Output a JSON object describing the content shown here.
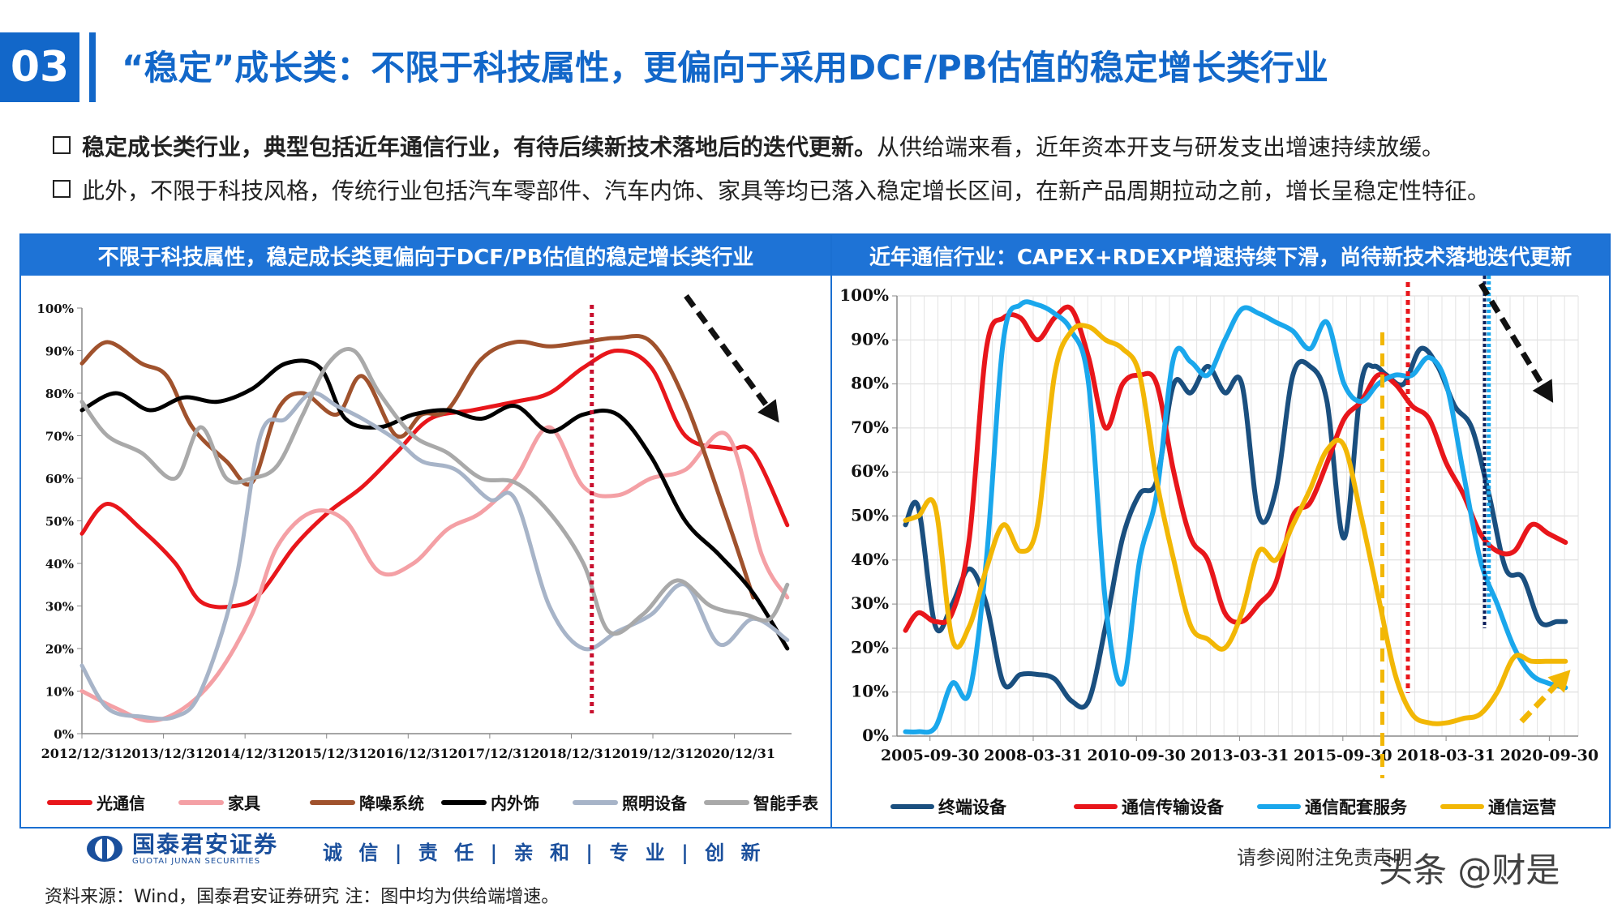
{
  "header": {
    "section_number": "03",
    "title": "“稳定”成长类：不限于科技属性，更偏向于采用DCF/PB估值的稳定增长类行业"
  },
  "bullets": [
    {
      "bold": "稳定成长类行业，典型包括近年通信行业，有待后续新技术落地后的迭代更新。",
      "normal": "从供给端来看，近年资本开支与研发支出增速持续放缓。"
    },
    {
      "bold": "",
      "normal": "此外，不限于科技风格，传统行业包括汽车零部件、汽车内饰、家具等均已落入稳定增长区间，在新产品周期拉动之前，增长呈稳定性特征。"
    }
  ],
  "footer": {
    "logo_cn": "国泰君安证券",
    "logo_en": "GUOTAI JUNAN SECURITIES",
    "motto": "诚 信 | 责 任 | 亲 和 | 专 业 | 创 新",
    "disclaimer": "请参阅附注免责声明",
    "watermark": "头条 @财是",
    "source": "资料来源：Wind，国泰君安证券研究 注：图中均为供给端增速。"
  },
  "colors": {
    "brand_blue": "#1267c9",
    "panel_header": "#1e73d6",
    "reference_line": "#c8102e"
  },
  "chart_data": [
    {
      "type": "line",
      "title": "不限于科技属性，稳定成长类更偏向于DCF/PB估值的稳定增长类行业",
      "xlabel": "",
      "ylabel": "",
      "x_tick_labels": [
        "2012/12/31",
        "2013/12/31",
        "2014/12/31",
        "2015/12/31",
        "2016/12/31",
        "2017/12/31",
        "2018/12/31",
        "2019/12/31",
        "2020/12/31"
      ],
      "y_tick_labels": [
        "0%",
        "10%",
        "20%",
        "30%",
        "40%",
        "50%",
        "60%",
        "70%",
        "80%",
        "90%",
        "100%"
      ],
      "xlim": [
        2012.9,
        2021.25
      ],
      "ylim": [
        0,
        100
      ],
      "reference_line_x": 2018.9,
      "trend_arrow": "down",
      "legend_position": "bottom",
      "series": [
        {
          "name": "光通信",
          "color": "#e8161b",
          "x": [
            2012.9,
            2013.2,
            2013.6,
            2014.0,
            2014.3,
            2014.7,
            2015.0,
            2015.4,
            2015.8,
            2016.2,
            2016.6,
            2017.0,
            2017.5,
            2018.0,
            2018.4,
            2018.8,
            2019.2,
            2019.6,
            2020.0,
            2020.5,
            2020.8,
            2021.2
          ],
          "values": [
            47,
            54,
            48,
            40,
            31,
            30,
            33,
            44,
            52,
            58,
            66,
            74,
            76,
            78,
            80,
            86,
            90,
            86,
            70,
            67,
            66,
            49
          ]
        },
        {
          "name": "家具",
          "color": "#f4a0a5",
          "x": [
            2012.9,
            2013.3,
            2013.7,
            2014.1,
            2014.5,
            2014.9,
            2015.2,
            2015.6,
            2016.0,
            2016.4,
            2016.8,
            2017.2,
            2017.6,
            2018.0,
            2018.4,
            2018.8,
            2019.2,
            2019.6,
            2020.0,
            2020.5,
            2020.9,
            2021.2
          ],
          "values": [
            10,
            6,
            3,
            6,
            14,
            28,
            44,
            52,
            50,
            38,
            40,
            48,
            52,
            60,
            72,
            58,
            56,
            60,
            62,
            70,
            42,
            32
          ]
        },
        {
          "name": "降噪系统",
          "color": "#a0522d",
          "x": [
            2012.9,
            2013.2,
            2013.6,
            2013.9,
            2014.2,
            2014.6,
            2014.9,
            2015.2,
            2015.5,
            2015.9,
            2016.2,
            2016.6,
            2016.9,
            2017.2,
            2017.6,
            2018.0,
            2018.4,
            2018.8,
            2019.2,
            2019.6,
            2020.0,
            2020.5,
            2020.8
          ],
          "values": [
            87,
            92,
            87,
            84,
            72,
            64,
            59,
            76,
            80,
            75,
            84,
            70,
            75,
            76,
            88,
            92,
            91,
            92,
            93,
            92,
            78,
            50,
            32
          ]
        },
        {
          "name": "内外饰",
          "color": "#000000",
          "x": [
            2012.9,
            2013.3,
            2013.7,
            2014.1,
            2014.5,
            2014.9,
            2015.3,
            2015.7,
            2016.0,
            2016.4,
            2016.8,
            2017.2,
            2017.6,
            2018.0,
            2018.4,
            2018.8,
            2019.2,
            2019.6,
            2020.0,
            2020.4,
            2020.8,
            2021.2
          ],
          "values": [
            76,
            80,
            76,
            79,
            78,
            81,
            87,
            86,
            74,
            72,
            75,
            76,
            74,
            77,
            71,
            75,
            75,
            65,
            50,
            42,
            33,
            20
          ]
        },
        {
          "name": "照明设备",
          "color": "#a7b4c8",
          "x": [
            2012.9,
            2013.2,
            2013.6,
            2014.0,
            2014.3,
            2014.7,
            2015.0,
            2015.3,
            2015.6,
            2015.9,
            2016.2,
            2016.6,
            2016.9,
            2017.3,
            2017.7,
            2018.0,
            2018.4,
            2018.8,
            2019.2,
            2019.6,
            2020.0,
            2020.4,
            2020.8,
            2021.2
          ],
          "values": [
            16,
            6,
            4,
            4,
            10,
            35,
            70,
            74,
            80,
            77,
            74,
            69,
            64,
            62,
            55,
            55,
            30,
            20,
            24,
            28,
            35,
            21,
            27,
            22
          ]
        },
        {
          "name": "智能手表",
          "color": "#a9a9a9",
          "x": [
            2012.9,
            2013.2,
            2013.6,
            2014.0,
            2014.3,
            2014.6,
            2014.9,
            2015.2,
            2015.5,
            2015.8,
            2016.1,
            2016.4,
            2016.8,
            2017.2,
            2017.6,
            2018.0,
            2018.4,
            2018.8,
            2019.1,
            2019.5,
            2019.9,
            2020.3,
            2020.7,
            2021.0,
            2021.2
          ],
          "values": [
            78,
            70,
            66,
            60,
            72,
            60,
            60,
            63,
            75,
            87,
            90,
            80,
            70,
            66,
            60,
            59,
            52,
            40,
            24,
            28,
            36,
            30,
            28,
            27,
            35
          ]
        }
      ]
    },
    {
      "type": "line",
      "title": "近年通信行业：CAPEX+RDEXP增速持续下滑，尚待新技术落地迭代更新",
      "xlabel": "",
      "ylabel": "",
      "x_tick_labels": [
        "2005-09-30",
        "2008-03-31",
        "2010-09-30",
        "2013-03-31",
        "2015-09-30",
        "2018-03-31",
        "2020-09-30"
      ],
      "y_tick_labels": [
        "0%",
        "10%",
        "20%",
        "30%",
        "40%",
        "50%",
        "60%",
        "70%",
        "80%",
        "90%",
        "100%"
      ],
      "xlim": [
        2005.5,
        2021.5
      ],
      "ylim": [
        0,
        100
      ],
      "reference_lines_x": [
        {
          "x": 2016.9,
          "color": "#f2b705"
        },
        {
          "x": 2017.5,
          "color": "#e8161b"
        },
        {
          "x": 2019.3,
          "color": "#0b1f5c"
        },
        {
          "x": 2019.4,
          "color": "#1aa7ec"
        }
      ],
      "trend_arrows": [
        "down",
        "up"
      ],
      "legend_position": "bottom",
      "series": [
        {
          "name": "终端设备",
          "color": "#1a4f7f",
          "x": [
            2005.7,
            2006.0,
            2006.4,
            2006.8,
            2007.2,
            2007.6,
            2008.0,
            2008.4,
            2008.8,
            2009.2,
            2009.6,
            2010.0,
            2010.4,
            2010.8,
            2011.2,
            2011.6,
            2012.0,
            2012.4,
            2012.8,
            2013.2,
            2013.6,
            2014.0,
            2014.4,
            2014.8,
            2015.2,
            2015.6,
            2016.0,
            2016.4,
            2016.7,
            2017.0,
            2017.4,
            2017.8,
            2018.2,
            2018.6,
            2019.0,
            2019.4,
            2019.8,
            2020.2,
            2020.6,
            2021.0,
            2021.2
          ],
          "values": [
            48,
            52,
            25,
            30,
            38,
            30,
            12,
            14,
            14,
            13,
            8,
            8,
            25,
            45,
            55,
            58,
            80,
            78,
            84,
            78,
            80,
            50,
            56,
            82,
            84,
            76,
            45,
            80,
            84,
            82,
            80,
            88,
            84,
            75,
            70,
            55,
            38,
            36,
            26,
            26,
            26
          ]
        },
        {
          "name": "通信传输设备",
          "color": "#e8161b",
          "x": [
            2005.7,
            2006.0,
            2006.4,
            2006.8,
            2007.2,
            2007.6,
            2008.0,
            2008.4,
            2008.8,
            2009.2,
            2009.6,
            2010.0,
            2010.4,
            2010.8,
            2011.2,
            2011.6,
            2012.0,
            2012.4,
            2012.8,
            2013.2,
            2013.6,
            2014.0,
            2014.4,
            2014.8,
            2015.2,
            2015.6,
            2016.0,
            2016.4,
            2016.8,
            2017.2,
            2017.6,
            2018.0,
            2018.4,
            2018.8,
            2019.2,
            2019.6,
            2020.0,
            2020.4,
            2020.8,
            2021.2
          ],
          "values": [
            24,
            28,
            26,
            28,
            45,
            88,
            95,
            95,
            90,
            95,
            97,
            86,
            70,
            80,
            82,
            80,
            60,
            45,
            40,
            28,
            26,
            30,
            35,
            50,
            53,
            62,
            72,
            76,
            82,
            80,
            75,
            72,
            62,
            55,
            46,
            42,
            42,
            48,
            46,
            44
          ]
        },
        {
          "name": "通信配套服务",
          "color": "#1aa7ec",
          "x": [
            2005.7,
            2006.0,
            2006.4,
            2006.8,
            2007.2,
            2007.6,
            2008.0,
            2008.4,
            2008.8,
            2009.2,
            2009.6,
            2010.0,
            2010.4,
            2010.8,
            2011.2,
            2011.6,
            2012.0,
            2012.4,
            2012.8,
            2013.2,
            2013.6,
            2014.0,
            2014.4,
            2014.8,
            2015.2,
            2015.6,
            2016.0,
            2016.4,
            2016.8,
            2017.2,
            2017.6,
            2018.0,
            2018.4,
            2018.8,
            2019.2,
            2019.6,
            2020.0,
            2020.4,
            2020.8,
            2021.2
          ],
          "values": [
            1,
            1,
            2,
            12,
            10,
            40,
            90,
            98,
            98,
            96,
            92,
            80,
            30,
            12,
            40,
            55,
            86,
            85,
            82,
            90,
            97,
            96,
            94,
            92,
            88,
            94,
            80,
            76,
            80,
            82,
            82,
            86,
            80,
            60,
            40,
            30,
            20,
            14,
            12,
            11
          ]
        },
        {
          "name": "通信运营",
          "color": "#f2b705",
          "x": [
            2005.7,
            2006.0,
            2006.4,
            2006.8,
            2007.2,
            2007.6,
            2008.0,
            2008.4,
            2008.8,
            2009.2,
            2009.6,
            2010.0,
            2010.4,
            2010.8,
            2011.2,
            2011.6,
            2012.0,
            2012.4,
            2012.8,
            2013.2,
            2013.6,
            2014.0,
            2014.4,
            2014.8,
            2015.2,
            2015.6,
            2016.0,
            2016.4,
            2016.8,
            2017.2,
            2017.6,
            2018.0,
            2018.4,
            2018.8,
            2019.2,
            2019.6,
            2020.0,
            2020.4,
            2020.8,
            2021.2
          ],
          "values": [
            49,
            50,
            52,
            22,
            25,
            38,
            48,
            42,
            48,
            82,
            92,
            93,
            90,
            88,
            82,
            58,
            40,
            25,
            22,
            20,
            28,
            42,
            40,
            48,
            56,
            65,
            66,
            50,
            32,
            14,
            5,
            3,
            3,
            4,
            5,
            10,
            18,
            17,
            17,
            17
          ]
        }
      ]
    }
  ]
}
